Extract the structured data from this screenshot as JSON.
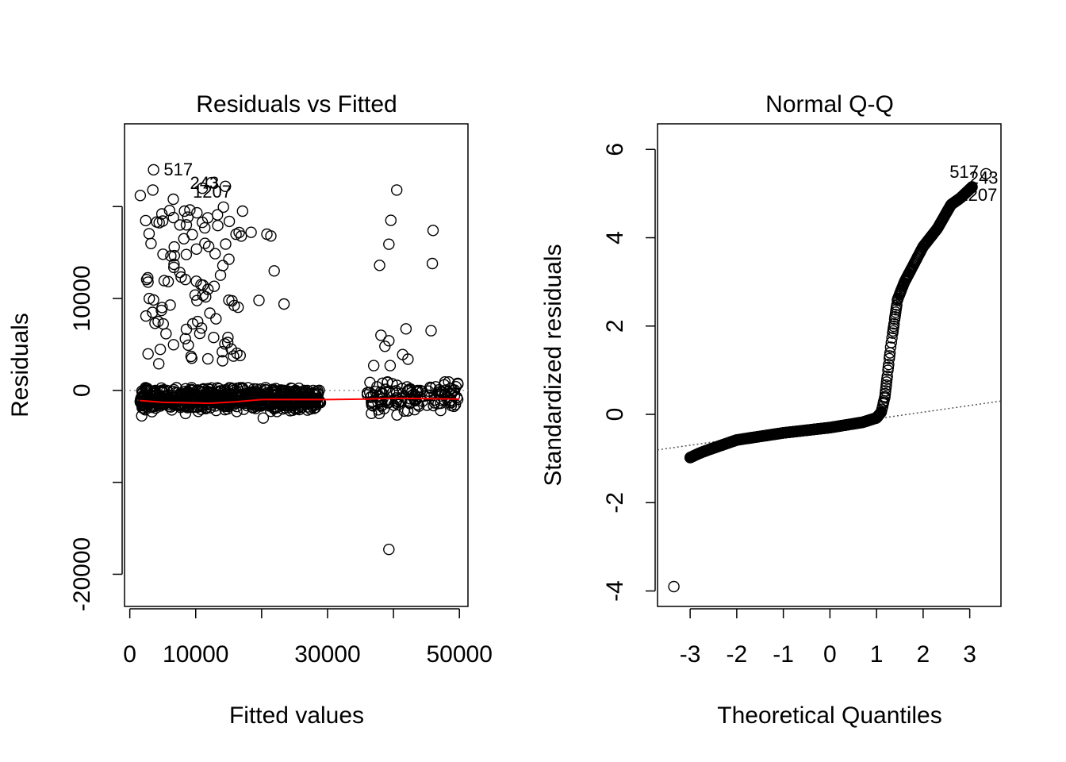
{
  "chart_data": [
    {
      "type": "scatter",
      "title": "Residuals vs Fitted",
      "xlabel": "Fitted values",
      "ylabel": "Residuals",
      "xlim": [
        -800,
        51300
      ],
      "ylim": [
        -23500,
        29000
      ],
      "x_ticks": [
        0,
        10000,
        30000,
        50000
      ],
      "x_tick_labels": [
        "0",
        "10000",
        "30000",
        "50000"
      ],
      "y_ticks": [
        -20000,
        -10000,
        0,
        10000,
        20000
      ],
      "y_tick_labels": [
        "-20000",
        "",
        "0",
        "10000",
        ""
      ],
      "zero_line": 0,
      "marker": "open-circle",
      "point_color": "#000000",
      "smooth_color": "#ff0000",
      "reference_line_color": "#999999",
      "annotations": [
        {
          "label": "517",
          "x": 3700,
          "y": 24000
        },
        {
          "label": "243",
          "x": 12500,
          "y": 22600
        },
        {
          "label": "1207",
          "x": 11000,
          "y": 22000
        }
      ],
      "smooth_line": {
        "x": [
          1500,
          5000,
          9000,
          12000,
          16000,
          20000,
          25000,
          30000,
          36000,
          40000,
          45000,
          50000
        ],
        "y": [
          -1100,
          -1300,
          -1350,
          -1400,
          -1250,
          -1000,
          -1000,
          -1000,
          -950,
          -850,
          -900,
          -950
        ]
      },
      "highlight_points": {
        "x": [
          3600,
          12400,
          11000,
          3500,
          1600,
          6600,
          8300,
          7600,
          11400,
          13300,
          14500,
          17100,
          18400,
          20800,
          21400,
          21900,
          23400,
          19600,
          40500,
          39600,
          39300,
          46000,
          45900,
          37900,
          41900,
          45700,
          38100,
          39300,
          38700,
          39500,
          41400,
          42200,
          37000,
          4400,
          9300,
          9400,
          4800,
          4300,
          15400
        ],
        "y": [
          24000,
          22600,
          22000,
          21800,
          21200,
          20800,
          19500,
          18000,
          16000,
          19100,
          22200,
          19500,
          17200,
          17000,
          16800,
          13000,
          9400,
          9800,
          21800,
          18500,
          15900,
          17400,
          13800,
          13600,
          6700,
          6500,
          6000,
          5400,
          4800,
          2700,
          3900,
          3400,
          2700,
          2900,
          3700,
          3500,
          8700,
          7500,
          4500
        ]
      },
      "series": [
        {
          "name": "",
          "x": [],
          "y": []
        }
      ]
    },
    {
      "type": "scatter",
      "title": "Normal Q-Q",
      "xlabel": "Theoretical Quantiles",
      "ylabel": "Standardized residuals",
      "xlim": [
        -3.7,
        3.67
      ],
      "ylim": [
        -4.35,
        6.58
      ],
      "x_ticks": [
        -3,
        -2,
        -1,
        0,
        1,
        2,
        3
      ],
      "x_tick_labels": [
        "-3",
        "-2",
        "-1",
        "0",
        "1",
        "2",
        "3"
      ],
      "y_ticks": [
        -4,
        -2,
        0,
        2,
        4,
        6
      ],
      "y_tick_labels": [
        "-4",
        "-2",
        "0",
        "2",
        "4",
        "6"
      ],
      "marker": "open-circle",
      "point_color": "#000000",
      "reference_line": {
        "intercept": -0.25,
        "slope": 0.15,
        "style": "dotted",
        "color": "#555555"
      },
      "annotations": [
        {
          "label": "517",
          "x": 3.35,
          "y": 5.45
        },
        {
          "label": "243",
          "x": 3.02,
          "y": 5.15
        },
        {
          "label": "1207",
          "x": 2.86,
          "y": 5.05
        }
      ],
      "series": [
        {
          "name": "",
          "x": [],
          "y": []
        }
      ]
    }
  ]
}
